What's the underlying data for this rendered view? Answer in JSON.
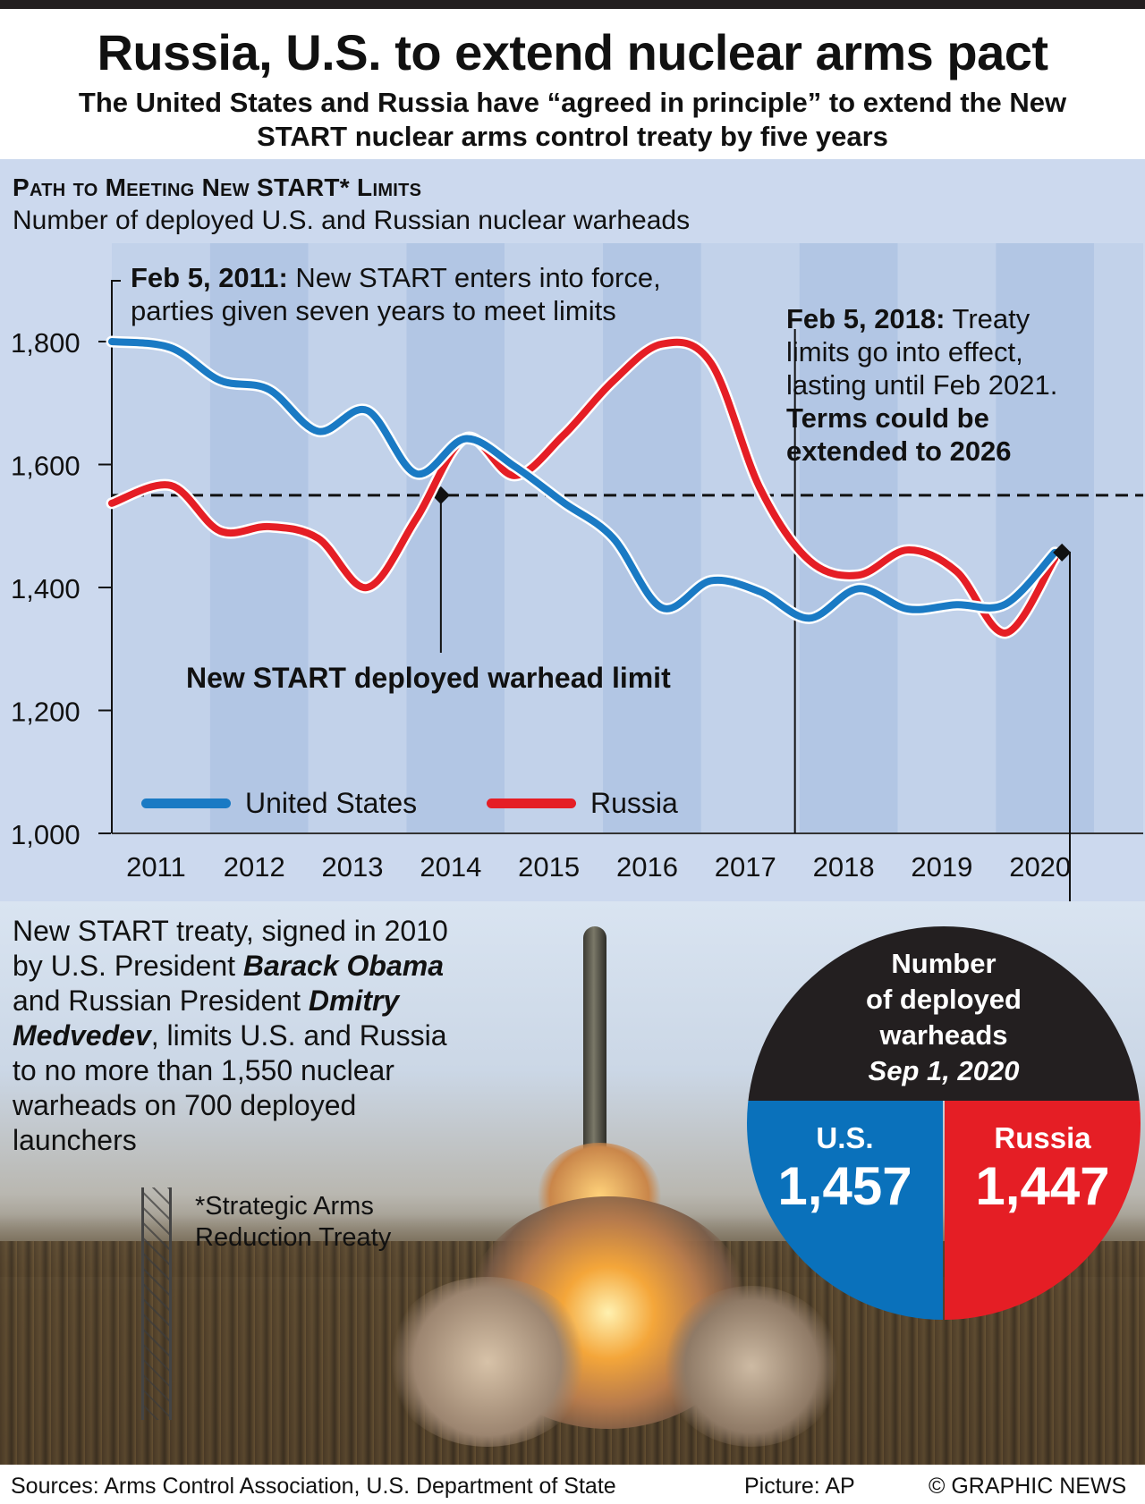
{
  "header": {
    "title": "Russia, U.S. to extend nuclear arms pact",
    "subtitle": "The United States and Russia have “agreed in principle” to extend the New START nuclear arms control treaty by five years"
  },
  "chart_data": {
    "type": "line",
    "title": "Path to Meeting New START* Limits",
    "subtitle": "Number of deployed U.S. and Russian nuclear warheads",
    "xlim": [
      2011.0,
      2021.5
    ],
    "ylim": [
      1000,
      1960
    ],
    "yticks": [
      1000,
      1200,
      1400,
      1600,
      1800
    ],
    "ytick_labels": [
      "1,000",
      "1,200",
      "1,400",
      "1,600",
      "1,800"
    ],
    "xtick_labels": [
      "2011",
      "2012",
      "2013",
      "2014",
      "2015",
      "2016",
      "2017",
      "2018",
      "2019",
      "2020"
    ],
    "limit": {
      "value": 1550,
      "label": "New START deployed warhead limit"
    },
    "series": [
      {
        "name": "United States",
        "color": "#1a7ac4",
        "points": [
          [
            2011.0,
            1800
          ],
          [
            2011.6,
            1790
          ],
          [
            2012.1,
            1737
          ],
          [
            2012.6,
            1722
          ],
          [
            2013.1,
            1654
          ],
          [
            2013.6,
            1688
          ],
          [
            2014.1,
            1585
          ],
          [
            2014.6,
            1642
          ],
          [
            2015.1,
            1597
          ],
          [
            2015.6,
            1538
          ],
          [
            2016.1,
            1481
          ],
          [
            2016.6,
            1367
          ],
          [
            2017.1,
            1411
          ],
          [
            2017.6,
            1393
          ],
          [
            2018.1,
            1350
          ],
          [
            2018.6,
            1398
          ],
          [
            2019.1,
            1365
          ],
          [
            2019.6,
            1372
          ],
          [
            2020.1,
            1373
          ],
          [
            2020.6,
            1457
          ]
        ]
      },
      {
        "name": "Russia",
        "color": "#e51e25",
        "points": [
          [
            2011.0,
            1537
          ],
          [
            2011.6,
            1566
          ],
          [
            2012.1,
            1492
          ],
          [
            2012.6,
            1499
          ],
          [
            2013.1,
            1480
          ],
          [
            2013.6,
            1400
          ],
          [
            2014.1,
            1512
          ],
          [
            2014.6,
            1643
          ],
          [
            2015.1,
            1582
          ],
          [
            2015.6,
            1648
          ],
          [
            2016.1,
            1735
          ],
          [
            2016.6,
            1796
          ],
          [
            2017.1,
            1765
          ],
          [
            2017.6,
            1561
          ],
          [
            2018.1,
            1444
          ],
          [
            2018.6,
            1420
          ],
          [
            2019.1,
            1461
          ],
          [
            2019.6,
            1426
          ],
          [
            2020.1,
            1326
          ],
          [
            2020.6,
            1447
          ]
        ]
      }
    ],
    "legend": "bottom"
  },
  "annotations": {
    "a2011_bold": "Feb 5, 2011:",
    "a2011_text1": " New START enters into force,",
    "a2011_text2": "parties given seven years to meet limits",
    "a2018_bold": "Feb 5, 2018:",
    "a2018_text1": " Treaty",
    "a2018_text2": "limits go into effect,",
    "a2018_text3": "lasting until Feb 2021.",
    "a2018_bold2": "Terms could be",
    "a2018_bold3": "extended to 2026"
  },
  "legend": {
    "us": "United States",
    "russia": "Russia"
  },
  "photo": {
    "text1": "New START treaty, signed in 2010",
    "text2": "by U.S. President ",
    "obama": "Barack Obama",
    "text3": "and Russian President ",
    "dmitry": "Dmitry",
    "medvedev": "Medvedev",
    "text4": ", limits U.S. and Russia",
    "text5": "to no more than 1,550 nuclear",
    "text6": "warheads on 700 deployed",
    "text7": "launchers",
    "footnote1": "*Strategic Arms",
    "footnote2": "Reduction Treaty"
  },
  "counter": {
    "line1": "Number",
    "line2": "of deployed",
    "line3": "warheads",
    "date": "Sep 1, 2020",
    "us_label": "U.S.",
    "us_value": "1,457",
    "ru_label": "Russia",
    "ru_value": "1,447",
    "colors": {
      "us": "#0a71bb",
      "russia": "#e51e25",
      "top": "#231f20"
    }
  },
  "footer": {
    "sources": "Sources: Arms Control Association, U.S. Department of State",
    "picture": "Picture: AP",
    "credit": "© GRAPHIC NEWS"
  }
}
